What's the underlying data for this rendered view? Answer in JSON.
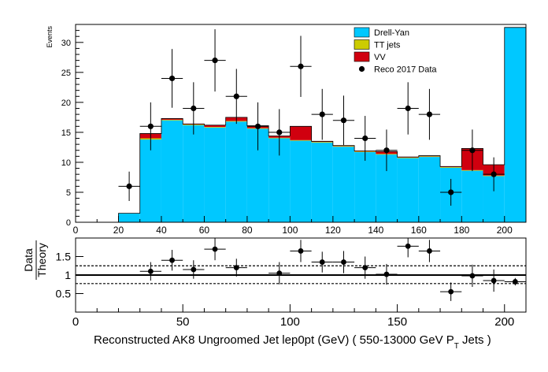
{
  "chart_data": [
    {
      "type": "bar",
      "panel": "main",
      "ylabel": "Events",
      "xlim": [
        0,
        210
      ],
      "ylim": [
        0,
        33
      ],
      "y_ticks": [
        0,
        5,
        10,
        15,
        20,
        25,
        30
      ],
      "x_ticks": [
        0,
        20,
        40,
        60,
        80,
        100,
        120,
        140,
        160,
        180,
        200
      ],
      "stacked": true,
      "bin_edges": [
        0,
        10,
        20,
        30,
        40,
        50,
        60,
        70,
        80,
        90,
        100,
        110,
        120,
        130,
        140,
        150,
        160,
        170,
        180,
        190,
        200,
        210
      ],
      "series": [
        {
          "name": "Drell-Yan",
          "color": "#00c8ff",
          "values": [
            0,
            0,
            1.5,
            13.8,
            17.0,
            16.2,
            15.8,
            16.8,
            15.6,
            14.0,
            13.6,
            13.3,
            12.6,
            11.7,
            11.3,
            10.7,
            10.9,
            9.1,
            8.6,
            7.7,
            32.5
          ]
        },
        {
          "name": "TT jets",
          "color": "#cccc00",
          "values": [
            0,
            0,
            0,
            0.2,
            0.1,
            0.1,
            0.1,
            0.1,
            0.1,
            0.1,
            0.1,
            0.1,
            0.1,
            0.1,
            0.1,
            0.1,
            0.1,
            0.1,
            0.1,
            0.1,
            0
          ]
        },
        {
          "name": "VV",
          "color": "#d0000f",
          "values": [
            0,
            0,
            0,
            0.8,
            0.2,
            0.1,
            0.3,
            0.6,
            0.4,
            0.3,
            2.3,
            0.1,
            0.1,
            0.1,
            0.4,
            0.1,
            0.1,
            0.1,
            3.6,
            1.8,
            0
          ]
        }
      ],
      "data_series": {
        "name": "Reco 2017 Data",
        "x": [
          25,
          35,
          45,
          55,
          65,
          75,
          85,
          95,
          105,
          115,
          125,
          135,
          145,
          155,
          165,
          175,
          185,
          195
        ],
        "y": [
          6,
          16,
          24,
          19,
          27,
          21,
          16,
          15,
          26,
          18,
          17,
          14,
          12,
          19,
          18,
          5,
          12,
          8
        ]
      },
      "legend": [
        {
          "label": "Drell-Yan",
          "kind": "fill",
          "color": "#00c8ff"
        },
        {
          "label": "TT jets",
          "kind": "fill",
          "color": "#cccc00"
        },
        {
          "label": "VV",
          "kind": "fill",
          "color": "#d0000f"
        },
        {
          "label": "Reco 2017 Data",
          "kind": "marker",
          "color": "#000000"
        }
      ],
      "legend_position": "top-right"
    },
    {
      "type": "scatter",
      "panel": "ratio",
      "ylabel_top": "Data",
      "ylabel_bottom": "Theory",
      "xlabel_prefix": "Reconstructed AK8 Ungroomed Jet lep0pt (GeV) ( 550-13000 GeV P",
      "xlabel_sub": "T",
      "xlabel_suffix": " Jets  )",
      "xlim": [
        0,
        210
      ],
      "ylim": [
        0,
        2.0
      ],
      "y_ticks": [
        0.5,
        1,
        1.5
      ],
      "y_tick_labels": [
        "0.5",
        "1",
        "1.5"
      ],
      "x_ticks": [
        0,
        50,
        100,
        150,
        200
      ],
      "x_tick_labels": [
        "0",
        "50",
        "100",
        "150",
        "200"
      ],
      "reference_lines": {
        "solid": 1.0,
        "dashed": [
          0.77,
          1.25
        ]
      },
      "x": [
        35,
        45,
        55,
        65,
        75,
        95,
        105,
        115,
        125,
        135,
        145,
        155,
        165,
        175,
        185,
        195,
        205
      ],
      "y": [
        1.1,
        1.4,
        1.15,
        1.7,
        1.2,
        1.05,
        1.65,
        1.35,
        1.35,
        1.2,
        1.02,
        1.78,
        1.65,
        0.55,
        0.98,
        0.85,
        0.82
      ]
    }
  ]
}
